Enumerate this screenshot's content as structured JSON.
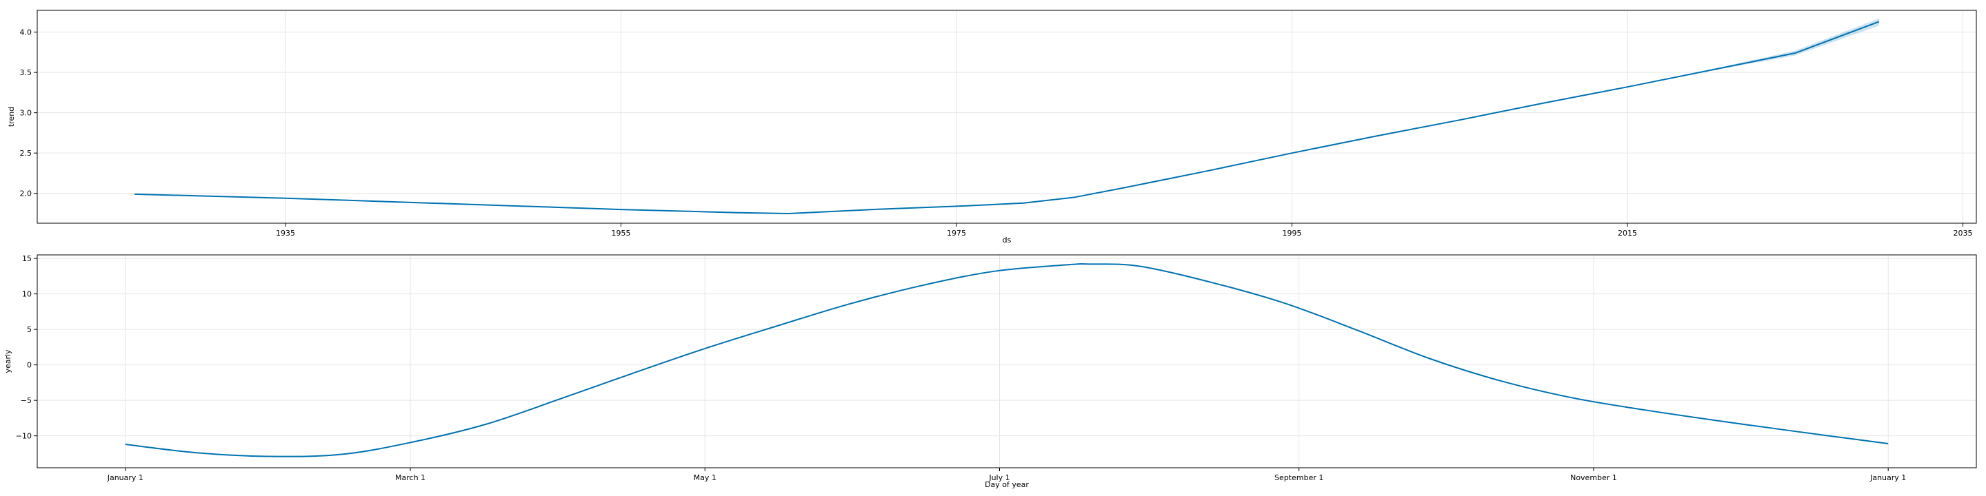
{
  "chart_data": [
    {
      "type": "line",
      "xlabel": "ds",
      "ylabel": "trend",
      "x_ticks": [
        1935,
        1955,
        1975,
        1995,
        2015,
        2035
      ],
      "x_tick_labels": [
        "1935",
        "1955",
        "1975",
        "1995",
        "2015",
        "2035"
      ],
      "y_ticks": [
        2.0,
        2.5,
        3.0,
        3.5,
        4.0
      ],
      "y_tick_labels": [
        "2.0",
        "2.5",
        "3.0",
        "3.5",
        "4.0"
      ],
      "xlim": [
        1920.2,
        2035.8
      ],
      "ylim": [
        1.63,
        4.27
      ],
      "grid": true,
      "color": "#0072B2",
      "band_color": "#0072B2",
      "series": [
        {
          "x": [
            1926,
            1935,
            1945,
            1955,
            1962,
            1965,
            1970,
            1975,
            1979,
            1982,
            1985,
            1990,
            1995,
            2000,
            2005,
            2010,
            2015,
            2020,
            2025,
            2030
          ],
          "y": [
            1.99,
            1.94,
            1.87,
            1.8,
            1.76,
            1.75,
            1.8,
            1.84,
            1.88,
            1.95,
            2.07,
            2.28,
            2.5,
            2.71,
            2.91,
            3.12,
            3.32,
            3.53,
            3.74,
            4.13
          ],
          "band_upper": [
            1.99,
            1.94,
            1.87,
            1.8,
            1.76,
            1.75,
            1.8,
            1.84,
            1.88,
            1.95,
            2.07,
            2.28,
            2.5,
            2.71,
            2.91,
            3.12,
            3.32,
            3.54,
            3.77,
            4.17
          ],
          "band_lower": [
            1.99,
            1.94,
            1.87,
            1.8,
            1.76,
            1.75,
            1.8,
            1.84,
            1.88,
            1.95,
            2.07,
            2.28,
            2.5,
            2.71,
            2.91,
            3.12,
            3.32,
            3.52,
            3.71,
            4.08
          ]
        }
      ]
    },
    {
      "type": "line",
      "xlabel": "Day of year",
      "ylabel": "yearly",
      "x_ticks": [
        0,
        59,
        120,
        181,
        243,
        304,
        365
      ],
      "x_tick_labels": [
        "January 1",
        "March 1",
        "May 1",
        "July 1",
        "September 1",
        "November 1",
        "January 1"
      ],
      "y_ticks": [
        -10,
        -5,
        0,
        5,
        10,
        15
      ],
      "y_tick_labels": [
        "−10",
        "−5",
        "0",
        "5",
        "10",
        "15"
      ],
      "xlim": [
        -18.25,
        383.25
      ],
      "ylim": [
        -14.5,
        15.5
      ],
      "grid": true,
      "color": "#0072B2",
      "series": [
        {
          "x": [
            0,
            15,
            30,
            45,
            60,
            75,
            90,
            105,
            120,
            135,
            150,
            165,
            180,
            195,
            200,
            210,
            225,
            240,
            255,
            270,
            285,
            300,
            315,
            330,
            345,
            365
          ],
          "y": [
            -11.2,
            -12.4,
            -12.9,
            -12.6,
            -10.8,
            -8.3,
            -4.8,
            -1.2,
            2.3,
            5.5,
            8.6,
            11.2,
            13.2,
            14.1,
            14.2,
            13.9,
            11.6,
            8.7,
            4.9,
            0.9,
            -2.3,
            -4.7,
            -6.4,
            -7.9,
            -9.3,
            -11.1
          ]
        }
      ]
    }
  ]
}
